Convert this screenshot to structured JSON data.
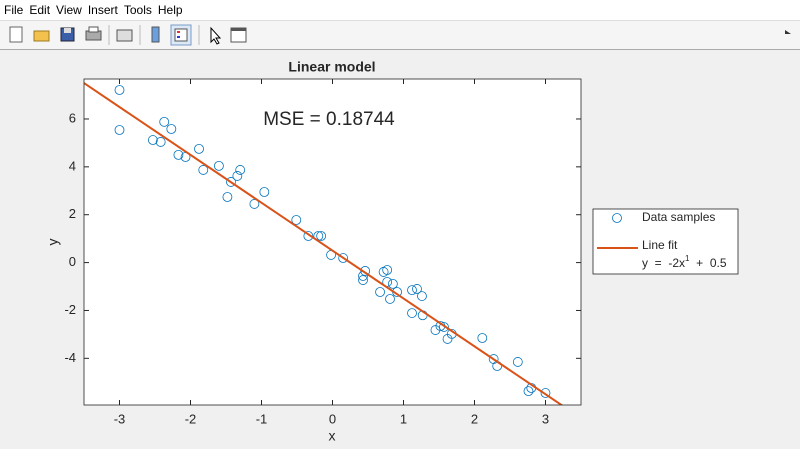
{
  "menu": [
    "File",
    "Edit",
    "View",
    "Insert",
    "Tools",
    "Help"
  ],
  "chart_data": {
    "type": "scatter",
    "title": "Linear model",
    "xlabel": "x",
    "ylabel": "y",
    "annotation": "MSE = 0.18744",
    "xlim": [
      -3.5,
      3.5
    ],
    "ylim": [
      -5.95,
      7.67
    ],
    "xticks": [
      -3,
      -2,
      -1,
      0,
      1,
      2,
      3
    ],
    "yticks": [
      -4,
      -2,
      0,
      2,
      4,
      6
    ],
    "legend": "outside-right",
    "series": [
      {
        "name": "Data samples",
        "type": "scatter",
        "color": "#0072bd",
        "x": [
          -3.0,
          -3.0,
          -2.53,
          -2.42,
          -2.37,
          -2.27,
          -2.17,
          -2.07,
          -1.88,
          -1.82,
          -1.6,
          -1.48,
          -1.43,
          -1.34,
          -1.3,
          -1.1,
          -0.96,
          -0.51,
          -0.34,
          -0.2,
          -0.16,
          -0.02,
          0.15,
          0.43,
          0.43,
          0.46,
          0.67,
          0.72,
          0.77,
          0.77,
          0.81,
          0.85,
          0.91,
          1.12,
          1.12,
          1.19,
          1.26,
          1.27,
          1.45,
          1.52,
          1.57,
          1.62,
          1.68,
          2.11,
          2.27,
          2.32,
          2.61,
          2.76,
          2.8,
          3.0
        ],
        "values": [
          7.21,
          5.54,
          5.12,
          5.04,
          5.88,
          5.58,
          4.5,
          4.41,
          4.75,
          3.87,
          4.04,
          2.74,
          3.37,
          3.62,
          3.87,
          2.45,
          2.95,
          1.78,
          1.11,
          1.11,
          1.11,
          0.32,
          0.19,
          -0.73,
          -0.56,
          -0.35,
          -1.23,
          -0.39,
          -0.31,
          -0.81,
          -1.52,
          -0.89,
          -1.23,
          -1.15,
          -2.11,
          -1.1,
          -1.4,
          -2.2,
          -2.82,
          -2.65,
          -2.69,
          -3.19,
          -2.98,
          -3.15,
          -4.03,
          -4.32,
          -4.15,
          -5.37,
          -5.24,
          -5.45
        ]
      },
      {
        "name": "Line  fit",
        "type": "line",
        "color": "#d95319",
        "equation": [
          "y  =  -2x",
          "1",
          "  +  0.5"
        ],
        "x": [
          -3.5,
          3.5
        ],
        "values": [
          7.5,
          -6.5
        ]
      }
    ]
  }
}
